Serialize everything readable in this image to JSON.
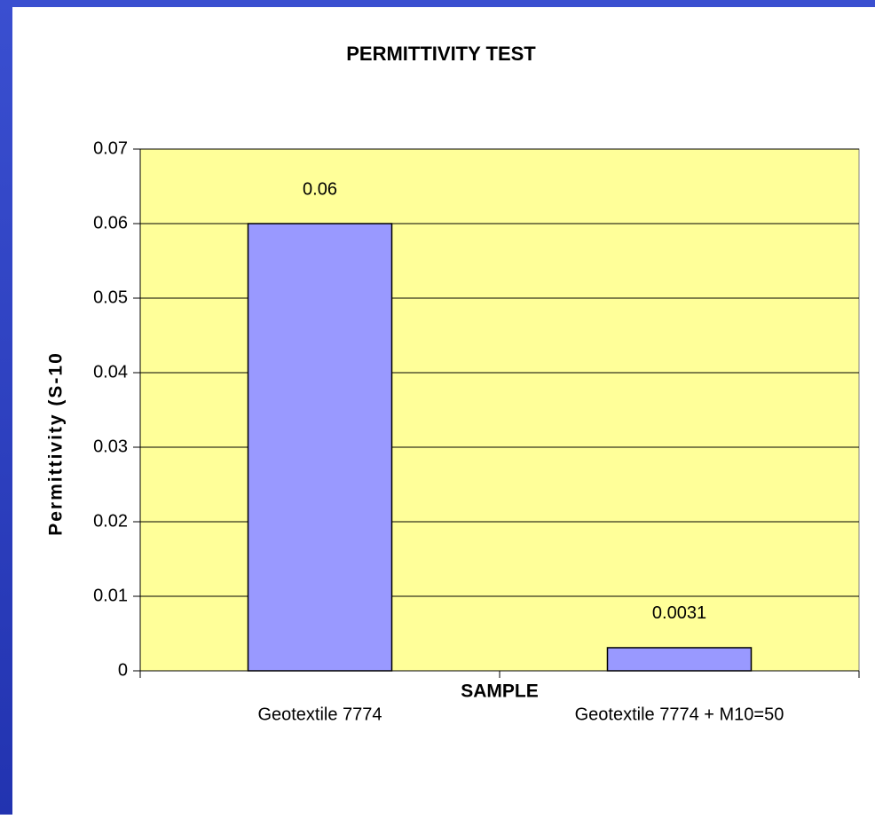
{
  "chart_data": {
    "type": "bar",
    "title": "PERMITTIVITY TEST",
    "x_label": "SAMPLE",
    "y_label": "Permittivity (S-10",
    "categories": [
      "Geotextile 7774",
      "Geotextile 7774 + M10=50"
    ],
    "values": [
      0.06,
      0.0031
    ],
    "color": "#9999ff",
    "plot_background": "#ffff99",
    "ylim": [
      0,
      0.07
    ],
    "yticks": [
      0,
      0.01,
      0.02,
      0.03,
      0.04,
      0.05,
      0.06,
      0.07
    ],
    "grid": true
  }
}
